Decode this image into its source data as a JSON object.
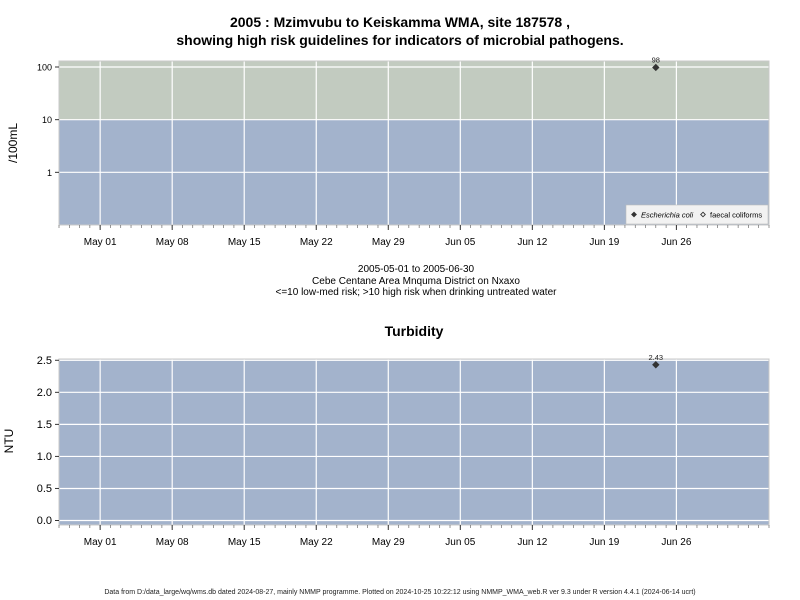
{
  "header": {
    "title_line1": "2005 : Mzimvubu to Keiskamma WMA, site 187578 ,",
    "title_line2": "showing high risk guidelines for indicators of microbial pathogens."
  },
  "caption": {
    "date_range": "2005-05-01 to 2005-06-30",
    "location": "Cebe Centane Area Mnquma District on Nxaxo",
    "risk_note": "<=10 low-med risk; >10 high risk when drinking untreated water"
  },
  "footer": {
    "source_note": "Data from D:/data_large/wq/wms.db dated 2024-08-27, mainly NMMP programme. Plotted on 2024-10-25 10:22:12 using NMMP_WMA_web.R ver 9.3 under R version 4.4.1 (2024-06-14 ucrt)"
  },
  "colors": {
    "panel_blue": "#a3b3cc",
    "high_risk_band": "#c2cbc0",
    "grid": "#ffffff",
    "marker": "#333333"
  },
  "chart_data": [
    {
      "type": "scatter",
      "title": "",
      "ylabel": "/100mL",
      "y_scale": "log",
      "ylim": [
        0.1,
        130
      ],
      "xlim": [
        "2005-04-27",
        "2005-07-05"
      ],
      "x_ticks": [
        "2005-05-01",
        "2005-05-08",
        "2005-05-15",
        "2005-05-22",
        "2005-05-29",
        "2005-06-05",
        "2005-06-12",
        "2005-06-19",
        "2005-06-26"
      ],
      "x_tick_labels": [
        "May 01",
        "May 08",
        "May 15",
        "May 22",
        "May 29",
        "Jun 05",
        "Jun 12",
        "Jun 19",
        "Jun 26"
      ],
      "y_ticks": [
        1,
        10,
        100
      ],
      "y_tick_labels": [
        "1",
        "10",
        "100"
      ],
      "threshold": 10,
      "legend_position": "bottom-right",
      "grid": true,
      "series": [
        {
          "name": "Escherichia coli",
          "marker": "filled-diamond",
          "points": [
            {
              "x": "2005-06-24",
              "y": 98,
              "label": "98"
            }
          ]
        },
        {
          "name": "faecal coliforms",
          "marker": "open-diamond",
          "points": []
        }
      ]
    },
    {
      "type": "scatter",
      "title": "Turbidity",
      "ylabel": "NTU",
      "ylim": [
        -0.07,
        2.52
      ],
      "xlim": [
        "2005-04-27",
        "2005-07-05"
      ],
      "x_ticks": [
        "2005-05-01",
        "2005-05-08",
        "2005-05-15",
        "2005-05-22",
        "2005-05-29",
        "2005-06-05",
        "2005-06-12",
        "2005-06-19",
        "2005-06-26"
      ],
      "x_tick_labels": [
        "May 01",
        "May 08",
        "May 15",
        "May 22",
        "May 29",
        "Jun 05",
        "Jun 12",
        "Jun 19",
        "Jun 26"
      ],
      "y_ticks": [
        0.0,
        0.5,
        1.0,
        1.5,
        2.0,
        2.5
      ],
      "y_tick_labels": [
        "0.0",
        "0.5",
        "1.0",
        "1.5",
        "2.0",
        "2.5"
      ],
      "grid": true,
      "series": [
        {
          "name": "",
          "marker": "filled-diamond",
          "points": [
            {
              "x": "2005-06-24",
              "y": 2.43,
              "label": "2.43"
            }
          ]
        }
      ]
    }
  ]
}
